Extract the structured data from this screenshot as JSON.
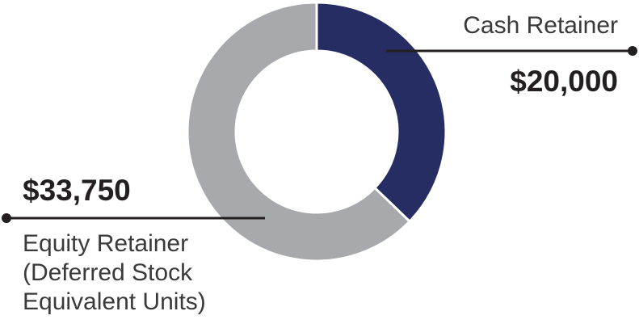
{
  "chart_data": {
    "type": "donut",
    "categories": [
      "Cash Retainer",
      "Equity Retainer (Deferred Stock Equivalent Units)"
    ],
    "values": [
      20000,
      33750
    ],
    "value_labels": [
      "$20,000",
      "$33,750"
    ],
    "colors": [
      "#252d63",
      "#a7a9ac"
    ]
  }
}
